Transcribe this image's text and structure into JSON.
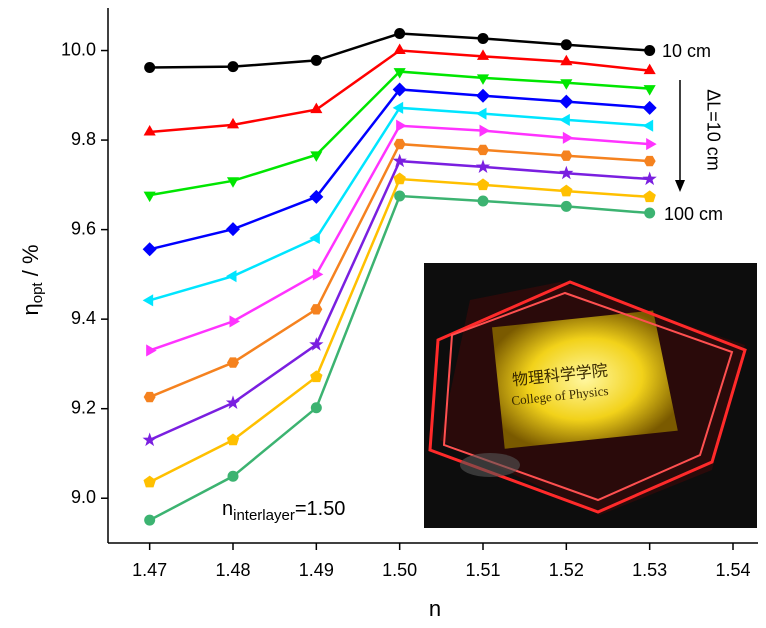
{
  "chart_data": {
    "type": "line",
    "x_label": "n",
    "y_label": {
      "text": "η",
      "sub": "opt",
      "after": " / %"
    },
    "x": [
      1.47,
      1.48,
      1.49,
      1.5,
      1.51,
      1.52,
      1.53
    ],
    "xlim": [
      1.465,
      1.543
    ],
    "ylim": [
      8.9,
      10.095
    ],
    "xticks": [
      1.47,
      1.48,
      1.49,
      {
        "value": 1.5,
        "label": "1.50"
      },
      1.51,
      1.52,
      1.53,
      1.54
    ],
    "yticks": [
      {
        "value": 9.0,
        "label": "9.0"
      },
      9.2,
      9.4,
      9.6,
      9.8,
      {
        "value": 10.0,
        "label": "10.0"
      }
    ],
    "series": [
      {
        "color": "#000000",
        "marker": "circle",
        "values": [
          9.962,
          9.964,
          9.978,
          10.038,
          10.027,
          10.013,
          10.0
        ]
      },
      {
        "color": "#ff0000",
        "marker": "triangle-up",
        "values": [
          9.818,
          9.834,
          9.868,
          10.0,
          9.987,
          9.975,
          9.955
        ]
      },
      {
        "color": "#00e600",
        "marker": "triangle-down",
        "values": [
          9.677,
          9.709,
          9.767,
          9.953,
          9.939,
          9.928,
          9.915
        ]
      },
      {
        "color": "#0000ff",
        "marker": "diamond",
        "values": [
          9.556,
          9.601,
          9.673,
          9.913,
          9.899,
          9.886,
          9.872
        ]
      },
      {
        "color": "#00e5ff",
        "marker": "triangle-left",
        "values": [
          9.442,
          9.496,
          9.581,
          9.872,
          9.859,
          9.845,
          9.832
        ]
      },
      {
        "color": "#ff33ff",
        "marker": "triangle-right",
        "values": [
          9.33,
          9.395,
          9.5,
          9.832,
          9.821,
          9.805,
          9.791
        ]
      },
      {
        "color": "#f5821f",
        "marker": "hexagon",
        "values": [
          9.226,
          9.303,
          9.422,
          9.791,
          9.778,
          9.765,
          9.753
        ]
      },
      {
        "color": "#7a1fe0",
        "marker": "star",
        "values": [
          9.13,
          9.213,
          9.343,
          9.753,
          9.74,
          9.726,
          9.713
        ]
      },
      {
        "color": "#ffc000",
        "marker": "pentagon",
        "values": [
          9.036,
          9.13,
          9.271,
          9.713,
          9.7,
          9.686,
          9.673
        ]
      },
      {
        "color": "#3cb371",
        "marker": "circle",
        "values": [
          8.951,
          9.049,
          9.202,
          9.675,
          9.664,
          9.652,
          9.637
        ]
      }
    ],
    "annotations": {
      "top": "10 cm",
      "bottom": "100 cm",
      "step": "ΔL=10 cm",
      "interlayer": {
        "text": "n",
        "sub": "interlayer",
        "after": "=1.50"
      }
    },
    "inset": {
      "chinese": "物理科学学院",
      "english": "College of Physics"
    }
  }
}
